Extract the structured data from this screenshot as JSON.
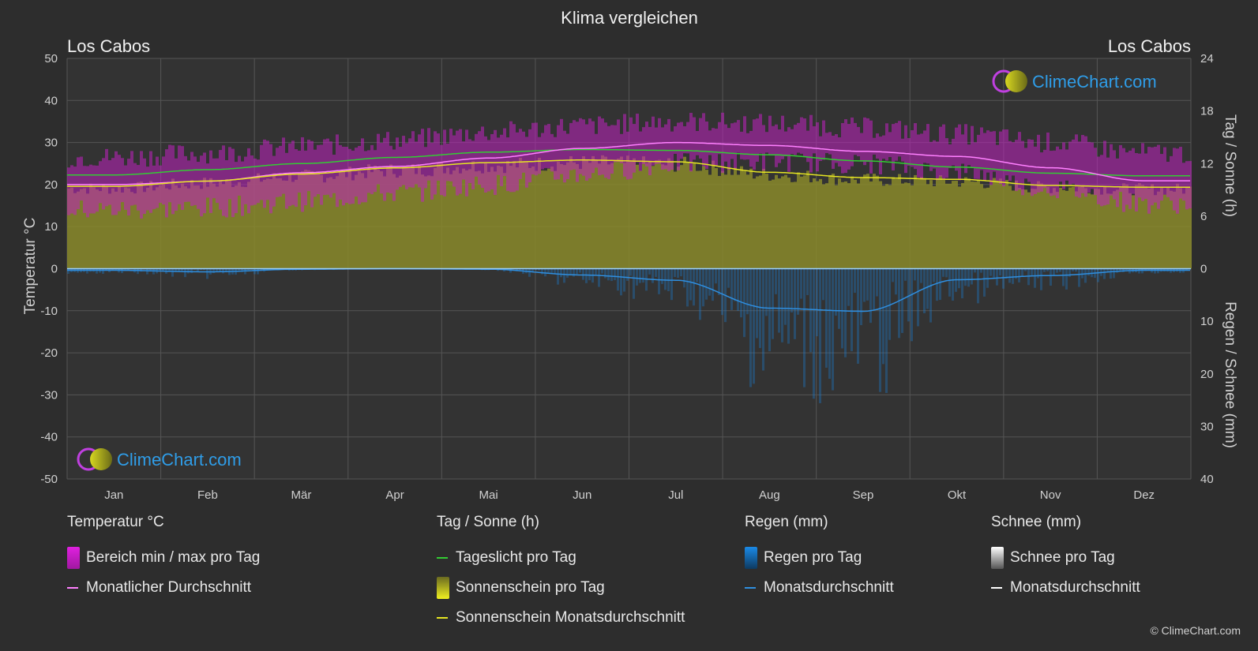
{
  "title": "Klima vergleichen",
  "location_left": "Los Cabos",
  "location_right": "Los Cabos",
  "logo_text": "ClimeChart.com",
  "copyright": "© ClimeChart.com",
  "colors": {
    "background": "#2d2d2d",
    "temp_range": "#c020c0",
    "temp_avg": "#ff80ff",
    "daylight": "#33cc33",
    "sunshine_fill": "#8a8a2a",
    "sunshine_avg": "#e6e622",
    "rain": "#1a7fd4",
    "rain_avg": "#2f8fe0",
    "snow_avg": "#ffffff",
    "logo_blue": "#2f9de8"
  },
  "legend": {
    "temperature": {
      "title": "Temperatur °C",
      "range_label": "Bereich min / max pro Tag",
      "avg_label": "Monatlicher Durchschnitt"
    },
    "sun": {
      "title": "Tag / Sonne (h)",
      "daylight_label": "Tageslicht pro Tag",
      "sunshine_label": "Sonnenschein pro Tag",
      "sunshine_avg_label": "Sonnenschein Monatsdurchschnitt"
    },
    "rain": {
      "title": "Regen (mm)",
      "rain_label": "Regen pro Tag",
      "avg_label": "Monatsdurchschnitt"
    },
    "snow": {
      "title": "Schnee (mm)",
      "snow_label": "Schnee pro Tag",
      "avg_label": "Monatsdurchschnitt"
    }
  },
  "chart_data": {
    "type": "line",
    "categories": [
      "Jan",
      "Feb",
      "Mär",
      "Apr",
      "Mai",
      "Jun",
      "Jul",
      "Aug",
      "Sep",
      "Okt",
      "Nov",
      "Dez"
    ],
    "y_left": {
      "label": "Temperatur °C",
      "range": [
        -50,
        50
      ],
      "ticks": [
        50,
        40,
        30,
        20,
        10,
        0,
        -10,
        -20,
        -30,
        -40,
        -50
      ]
    },
    "y_right_top": {
      "label": "Tag / Sonne (h)",
      "range": [
        0,
        24
      ],
      "ticks": [
        24,
        18,
        12,
        6,
        0
      ]
    },
    "y_right_bottom": {
      "label": "Regen / Schnee (mm)",
      "range": [
        0,
        40
      ],
      "ticks": [
        10,
        20,
        30,
        40
      ]
    },
    "grid": true,
    "series": [
      {
        "name": "Monatlicher Durchschnitt",
        "axis": "temperature",
        "values": [
          20.0,
          20.8,
          22.8,
          24.3,
          26.3,
          28.6,
          30.0,
          29.3,
          27.9,
          26.7,
          24.0,
          20.9
        ]
      },
      {
        "name": "Bereich min / max pro Tag (max)",
        "axis": "temperature",
        "values": [
          26.5,
          27.5,
          29.0,
          30.5,
          32.5,
          34.0,
          35.0,
          34.5,
          33.5,
          32.0,
          30.0,
          27.5
        ]
      },
      {
        "name": "Bereich min / max pro Tag (min)",
        "axis": "temperature",
        "values": [
          14.0,
          14.5,
          16.0,
          18.0,
          20.0,
          22.5,
          25.0,
          25.5,
          25.0,
          23.0,
          19.0,
          15.5
        ]
      },
      {
        "name": "Tageslicht pro Tag",
        "axis": "hours",
        "values": [
          10.7,
          11.3,
          12.0,
          12.7,
          13.3,
          13.6,
          13.5,
          13.0,
          12.3,
          11.6,
          10.9,
          10.6
        ]
      },
      {
        "name": "Sonnenschein Monatsdurchschnitt",
        "axis": "hours",
        "values": [
          9.4,
          10.0,
          10.8,
          11.5,
          12.1,
          12.4,
          12.2,
          11.0,
          10.4,
          10.2,
          9.5,
          9.3
        ]
      },
      {
        "name": "Regen Monatsdurchschnitt",
        "axis": "rain_mm",
        "values": [
          0.3,
          0.6,
          0.1,
          0.0,
          0.1,
          1.2,
          2.2,
          7.5,
          8.1,
          2.1,
          1.3,
          0.3
        ]
      }
    ]
  }
}
